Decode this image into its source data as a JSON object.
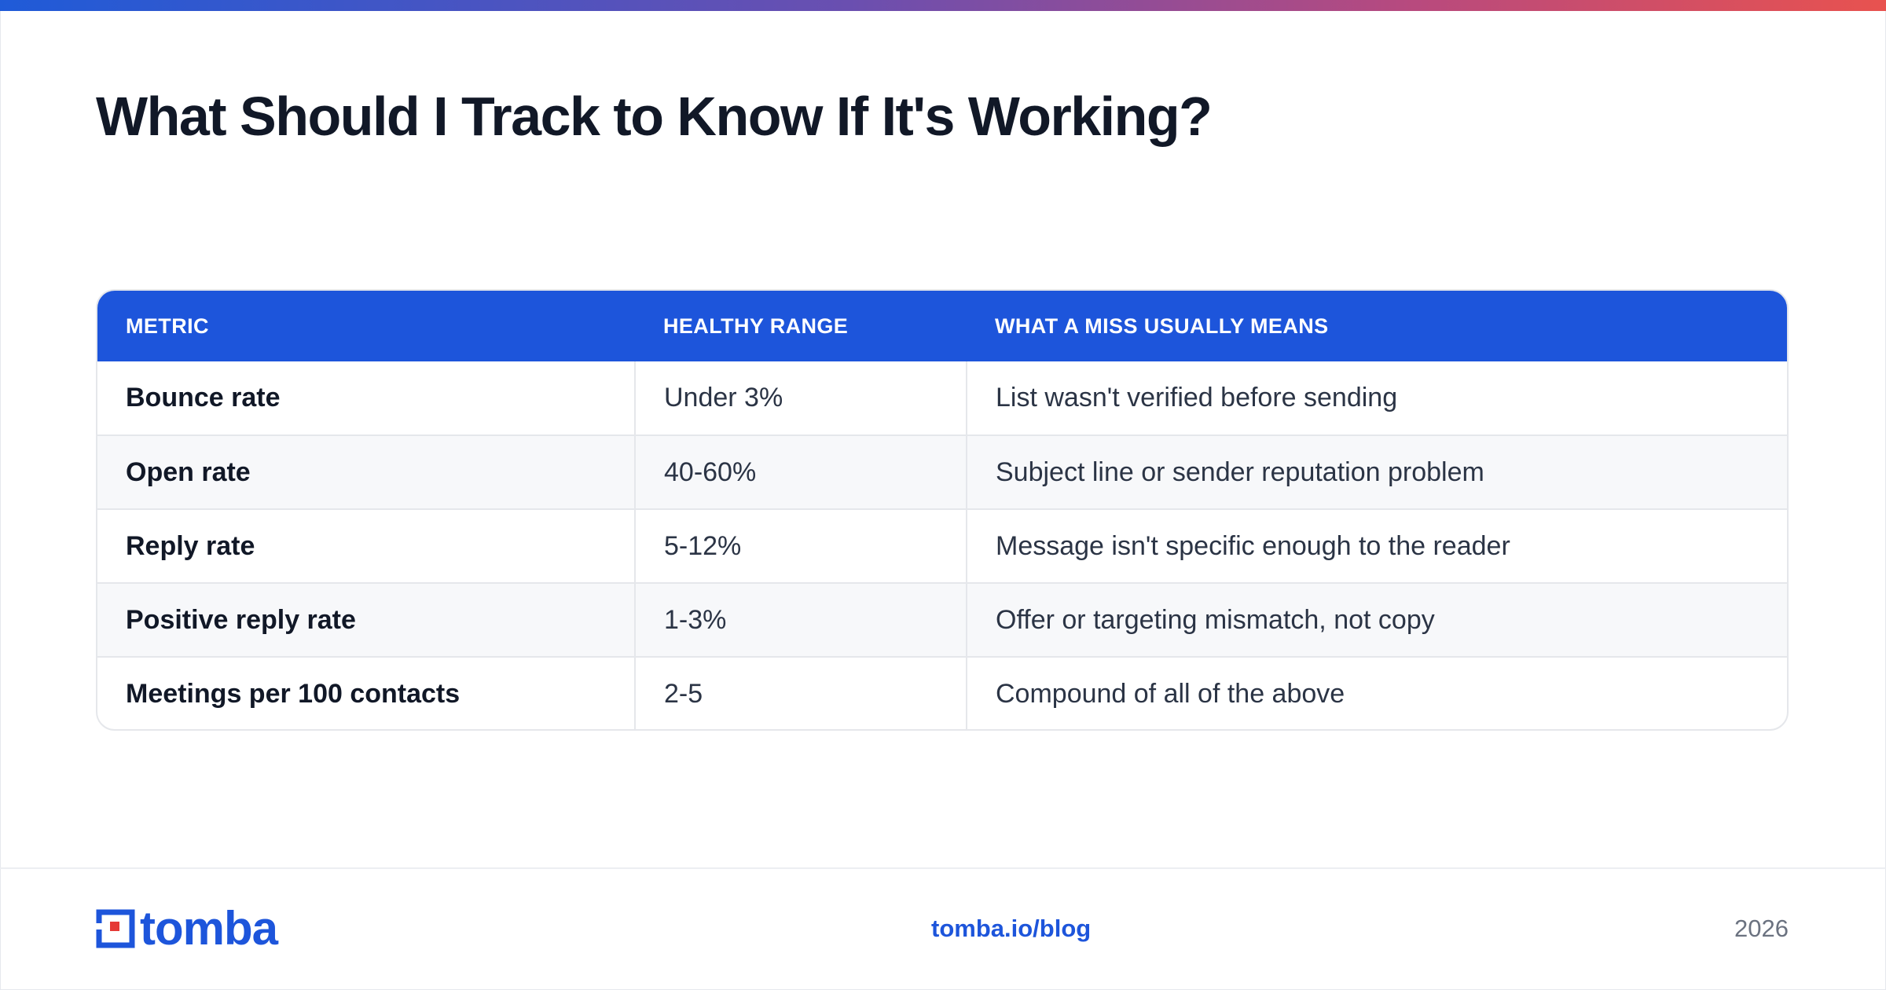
{
  "title": "What Should I Track to Know If It's Working?",
  "table": {
    "headers": [
      "METRIC",
      "HEALTHY RANGE",
      "WHAT A MISS USUALLY MEANS"
    ],
    "rows": [
      {
        "metric": "Bounce rate",
        "range": "Under 3%",
        "meaning": "List wasn't verified before sending"
      },
      {
        "metric": "Open rate",
        "range": "40-60%",
        "meaning": "Subject line or sender reputation problem"
      },
      {
        "metric": "Reply rate",
        "range": "5-12%",
        "meaning": "Message isn't specific enough to the reader"
      },
      {
        "metric": "Positive reply rate",
        "range": "1-3%",
        "meaning": "Offer or targeting mismatch, not copy"
      },
      {
        "metric": "Meetings per 100 contacts",
        "range": "2-5",
        "meaning": "Compound of all of the above"
      }
    ]
  },
  "footer": {
    "logo_text": "tomba",
    "url": "tomba.io/blog",
    "year": "2026"
  },
  "colors": {
    "accent": "#1d55db",
    "logo_red": "#e53935",
    "title": "#111827"
  }
}
